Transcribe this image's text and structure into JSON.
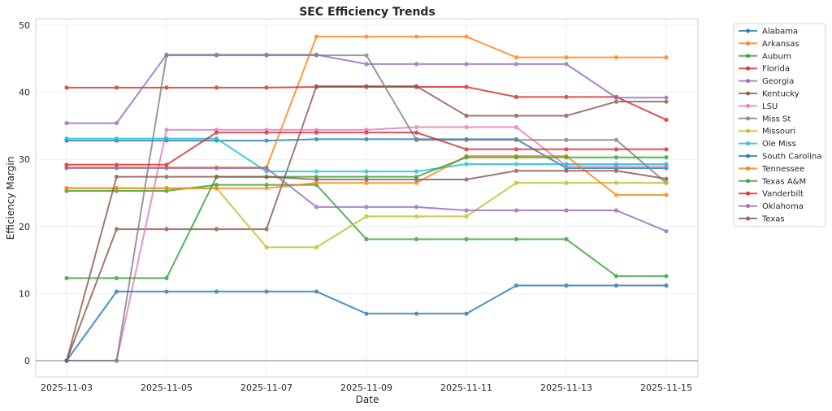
{
  "chart_data": {
    "type": "line",
    "title": "SEC Efficiency Trends",
    "xlabel": "Date",
    "ylabel": "Efficiency Margin",
    "x": [
      "2025-11-03",
      "2025-11-04",
      "2025-11-05",
      "2025-11-06",
      "2025-11-07",
      "2025-11-08",
      "2025-11-09",
      "2025-11-10",
      "2025-11-11",
      "2025-11-12",
      "2025-11-13",
      "2025-11-14",
      "2025-11-15"
    ],
    "xticks": [
      "2025-11-03",
      "2025-11-05",
      "2025-11-07",
      "2025-11-09",
      "2025-11-11",
      "2025-11-13",
      "2025-11-15"
    ],
    "yticks": [
      0,
      10,
      20,
      30,
      40,
      50
    ],
    "ylim": [
      -2.5,
      50.5
    ],
    "grid": true,
    "legend_position": "outside-top-right",
    "series": [
      {
        "name": "Alabama",
        "color": "#1f77b4",
        "values": [
          32.8,
          32.8,
          32.8,
          32.8,
          32.8,
          33.0,
          33.0,
          33.0,
          33.0,
          33.0,
          28.7,
          28.7,
          28.7
        ]
      },
      {
        "name": "Arkansas",
        "color": "#ff7f0e",
        "values": [
          28.8,
          28.8,
          28.8,
          28.8,
          28.8,
          48.3,
          48.3,
          48.3,
          48.3,
          45.2,
          45.2,
          45.2,
          45.2
        ]
      },
      {
        "name": "Auburn",
        "color": "#2ca02c",
        "values": [
          25.3,
          25.3,
          25.3,
          26.2,
          26.2,
          26.2,
          18.1,
          18.1,
          18.1,
          18.1,
          18.1,
          12.6,
          12.6
        ]
      },
      {
        "name": "Florida",
        "color": "#d62728",
        "values": [
          40.7,
          40.7,
          40.7,
          40.7,
          40.7,
          40.8,
          40.8,
          40.8,
          40.8,
          39.3,
          39.3,
          39.3,
          35.9
        ]
      },
      {
        "name": "Georgia",
        "color": "#9467bd",
        "values": [
          35.4,
          35.4,
          45.6,
          45.6,
          45.6,
          45.6,
          44.2,
          44.2,
          44.2,
          44.2,
          44.2,
          39.2,
          39.2
        ]
      },
      {
        "name": "Kentucky",
        "color": "#8c564b",
        "values": [
          0,
          19.6,
          19.6,
          19.6,
          19.6,
          40.9,
          40.9,
          40.9,
          36.5,
          36.5,
          36.5,
          38.6,
          38.6
        ]
      },
      {
        "name": "LSU",
        "color": "#e377c2",
        "values": [
          0,
          0,
          34.4,
          34.4,
          34.4,
          34.4,
          34.4,
          34.8,
          34.8,
          34.8,
          29.0,
          29.0,
          29.0
        ]
      },
      {
        "name": "Miss St",
        "color": "#7f7f7f",
        "values": [
          0,
          0,
          45.5,
          45.5,
          45.5,
          45.5,
          45.5,
          32.9,
          32.9,
          32.9,
          32.9,
          32.9,
          26.5
        ]
      },
      {
        "name": "Missouri",
        "color": "#bcbd22",
        "values": [
          25.7,
          25.7,
          25.7,
          25.7,
          16.9,
          16.9,
          21.5,
          21.5,
          21.5,
          26.5,
          26.5,
          26.5,
          26.5
        ]
      },
      {
        "name": "Ole Miss",
        "color": "#17becf",
        "values": [
          33.1,
          33.1,
          33.1,
          33.1,
          28.2,
          28.2,
          28.2,
          28.2,
          29.3,
          29.3,
          29.3,
          29.3,
          29.3
        ]
      },
      {
        "name": "South Carolina",
        "color": "#1f77b4",
        "values": [
          0,
          10.3,
          10.3,
          10.3,
          10.3,
          10.3,
          7.0,
          7.0,
          7.0,
          11.2,
          11.2,
          11.2,
          11.2
        ]
      },
      {
        "name": "Tennessee",
        "color": "#ff7f0e",
        "values": [
          25.7,
          25.7,
          25.7,
          25.7,
          25.7,
          26.5,
          26.5,
          26.5,
          30.5,
          30.5,
          30.5,
          24.7,
          24.7
        ]
      },
      {
        "name": "Texas A&M",
        "color": "#2ca02c",
        "values": [
          12.3,
          12.3,
          12.3,
          27.4,
          27.4,
          27.4,
          27.4,
          27.4,
          30.3,
          30.3,
          30.3,
          30.3,
          30.3
        ]
      },
      {
        "name": "Vanderbilt",
        "color": "#d62728",
        "values": [
          29.2,
          29.2,
          29.2,
          34.0,
          34.0,
          34.0,
          34.0,
          34.0,
          31.5,
          31.5,
          31.5,
          31.5,
          31.5
        ]
      },
      {
        "name": "Oklahoma",
        "color": "#9467bd",
        "values": [
          28.7,
          28.7,
          28.7,
          28.7,
          28.7,
          22.9,
          22.9,
          22.9,
          22.4,
          22.4,
          22.4,
          22.4,
          19.3
        ]
      },
      {
        "name": "Texas",
        "color": "#8c564b",
        "values": [
          0,
          27.4,
          27.4,
          27.4,
          27.4,
          27.0,
          27.0,
          27.0,
          27.0,
          28.3,
          28.3,
          28.3,
          27.1
        ]
      }
    ]
  }
}
